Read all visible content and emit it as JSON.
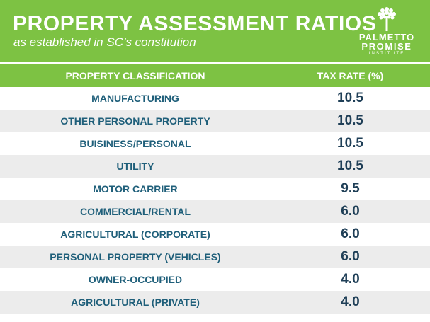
{
  "header": {
    "title": "PROPERTY ASSESSMENT RATIOS",
    "subtitle": "as established in SC’s constitution"
  },
  "logo": {
    "line1": "PALMETTO",
    "line2": "PROMISE",
    "line3": "INSTITUTE",
    "icon": "palmetto-tree-icon"
  },
  "colors": {
    "brand_green": "#7dc243",
    "row_alt": "#ececec",
    "label_blue": "#1f5f7a",
    "value_navy": "#1f3f57"
  },
  "chart_data": {
    "type": "table",
    "columns": [
      "PROPERTY CLASSIFICATION",
      "TAX RATE (%)"
    ],
    "rows": [
      {
        "label": "MANUFACTURING",
        "value": "10.5"
      },
      {
        "label": "OTHER PERSONAL PROPERTY",
        "value": "10.5"
      },
      {
        "label": "BUISINESS/PERSONAL",
        "value": "10.5"
      },
      {
        "label": "UTILITY",
        "value": "10.5"
      },
      {
        "label": "MOTOR CARRIER",
        "value": "9.5"
      },
      {
        "label": "COMMERCIAL/RENTAL",
        "value": "6.0"
      },
      {
        "label": "AGRICULTURAL (CORPORATE)",
        "value": "6.0"
      },
      {
        "label": "PERSONAL PROPERTY (VEHICLES)",
        "value": "6.0"
      },
      {
        "label": "OWNER-OCCUPIED",
        "value": "4.0"
      },
      {
        "label": "AGRICULTURAL (PRIVATE)",
        "value": "4.0"
      }
    ]
  }
}
